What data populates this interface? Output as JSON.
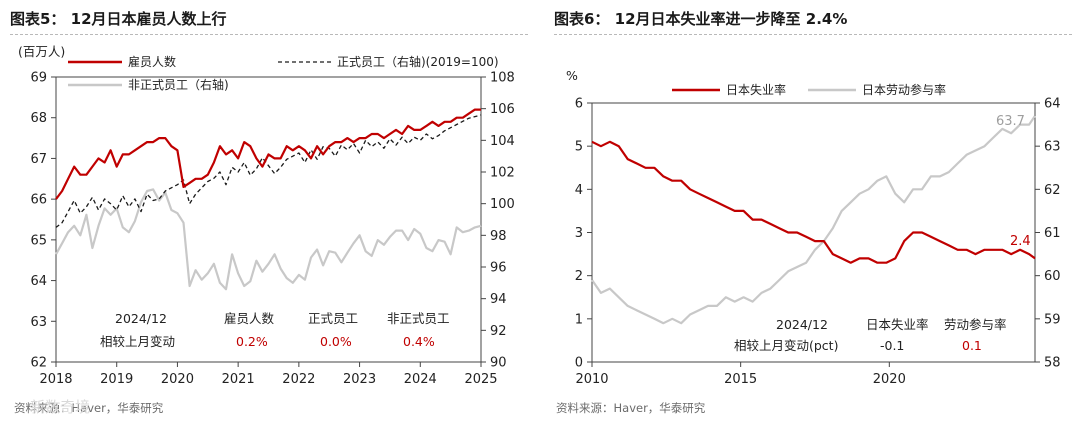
{
  "left_panel": {
    "title": "图表5： 12月日本雇员人数上行",
    "source": "资料来源：Haver，华泰研究",
    "watermark": "新数奇境"
  },
  "right_panel": {
    "title": "图表6： 12月日本失业率进一步降至 2.4%",
    "source": "资料来源：Haver，华泰研究"
  },
  "colors": {
    "red": "#c00000",
    "dashed": "#1a1a1a",
    "gray": "#c8c8c8"
  },
  "chart_data": [
    {
      "type": "line",
      "y_unit_label": "(百万人)",
      "xlim": [
        2018,
        2025
      ],
      "x_ticks": [
        "2018",
        "2019",
        "2020",
        "2021",
        "2022",
        "2023",
        "2024",
        "2025"
      ],
      "ylim_left": [
        62,
        69
      ],
      "y_ticks_left": [
        "62",
        "63",
        "64",
        "65",
        "66",
        "67",
        "68",
        "69"
      ],
      "ylim_right": [
        90,
        108
      ],
      "y_ticks_right": [
        "90",
        "92",
        "94",
        "96",
        "98",
        "100",
        "102",
        "104",
        "106",
        "108"
      ],
      "legend": [
        "雇员人数",
        "正式员工（右轴)(2019=100)",
        "非正式员工（右轴)"
      ],
      "series": [
        {
          "name": "雇员人数",
          "axis": "left",
          "style": "solid",
          "color": "#c00000",
          "x": [
            2018.0,
            2018.1,
            2018.2,
            2018.3,
            2018.4,
            2018.5,
            2018.6,
            2018.7,
            2018.8,
            2018.9,
            2019.0,
            2019.1,
            2019.2,
            2019.3,
            2019.4,
            2019.5,
            2019.6,
            2019.7,
            2019.8,
            2019.9,
            2020.0,
            2020.1,
            2020.2,
            2020.3,
            2020.4,
            2020.5,
            2020.6,
            2020.7,
            2020.8,
            2020.9,
            2021.0,
            2021.1,
            2021.2,
            2021.3,
            2021.4,
            2021.5,
            2021.6,
            2021.7,
            2021.8,
            2021.9,
            2022.0,
            2022.1,
            2022.2,
            2022.3,
            2022.4,
            2022.5,
            2022.6,
            2022.7,
            2022.8,
            2022.9,
            2023.0,
            2023.1,
            2023.2,
            2023.3,
            2023.4,
            2023.5,
            2023.6,
            2023.7,
            2023.8,
            2023.9,
            2024.0,
            2024.1,
            2024.2,
            2024.3,
            2024.4,
            2024.5,
            2024.6,
            2024.7,
            2024.8,
            2024.9,
            2025.0
          ],
          "y": [
            66.0,
            66.2,
            66.5,
            66.8,
            66.6,
            66.6,
            66.8,
            67.0,
            66.9,
            67.2,
            66.8,
            67.1,
            67.1,
            67.2,
            67.3,
            67.4,
            67.4,
            67.5,
            67.5,
            67.3,
            67.2,
            66.3,
            66.4,
            66.5,
            66.5,
            66.6,
            66.9,
            67.3,
            67.1,
            67.2,
            67.0,
            67.4,
            67.3,
            67.0,
            66.8,
            67.1,
            67.0,
            67.0,
            67.3,
            67.2,
            67.3,
            67.2,
            67.0,
            67.3,
            67.1,
            67.3,
            67.4,
            67.4,
            67.5,
            67.4,
            67.5,
            67.5,
            67.6,
            67.6,
            67.5,
            67.6,
            67.7,
            67.6,
            67.8,
            67.7,
            67.7,
            67.8,
            67.9,
            67.8,
            67.9,
            67.9,
            68.0,
            68.0,
            68.1,
            68.2,
            68.2
          ]
        },
        {
          "name": "正式员工（右轴)(2019=100)",
          "axis": "right",
          "style": "dashed",
          "color": "#1a1a1a",
          "x": [
            2018.0,
            2018.1,
            2018.2,
            2018.3,
            2018.4,
            2018.5,
            2018.6,
            2018.7,
            2018.8,
            2018.9,
            2019.0,
            2019.1,
            2019.2,
            2019.3,
            2019.4,
            2019.5,
            2019.6,
            2019.7,
            2019.8,
            2019.9,
            2020.0,
            2020.1,
            2020.2,
            2020.3,
            2020.4,
            2020.5,
            2020.6,
            2020.7,
            2020.8,
            2020.9,
            2021.0,
            2021.1,
            2021.2,
            2021.3,
            2021.4,
            2021.5,
            2021.6,
            2021.7,
            2021.8,
            2021.9,
            2022.0,
            2022.1,
            2022.2,
            2022.3,
            2022.4,
            2022.5,
            2022.6,
            2022.7,
            2022.8,
            2022.9,
            2023.0,
            2023.1,
            2023.2,
            2023.3,
            2023.4,
            2023.5,
            2023.6,
            2023.7,
            2023.8,
            2023.9,
            2024.0,
            2024.1,
            2024.2,
            2024.3,
            2024.4,
            2024.5,
            2024.6,
            2024.7,
            2024.8,
            2024.9,
            2025.0
          ],
          "y": [
            98.5,
            98.8,
            99.5,
            100.2,
            99.4,
            99.8,
            100.4,
            99.6,
            100.3,
            100.0,
            99.6,
            100.5,
            99.8,
            100.3,
            99.5,
            100.6,
            100.2,
            100.3,
            100.8,
            101.0,
            101.2,
            101.5,
            100.0,
            100.6,
            101.0,
            101.4,
            101.6,
            102.0,
            101.2,
            102.3,
            102.0,
            102.6,
            101.8,
            102.2,
            102.9,
            102.4,
            101.9,
            102.3,
            102.8,
            103.0,
            103.2,
            102.6,
            103.4,
            102.8,
            103.6,
            103.5,
            103.0,
            103.7,
            103.4,
            103.8,
            103.2,
            104.0,
            103.6,
            103.9,
            103.5,
            104.1,
            103.7,
            104.2,
            103.8,
            104.2,
            104.0,
            104.4,
            104.1,
            104.3,
            104.6,
            104.8,
            105.0,
            105.2,
            105.4,
            105.5,
            105.6
          ]
        },
        {
          "name": "非正式员工（右轴)",
          "axis": "right",
          "style": "solid",
          "color": "#c8c8c8",
          "x": [
            2018.0,
            2018.1,
            2018.2,
            2018.3,
            2018.4,
            2018.5,
            2018.6,
            2018.7,
            2018.8,
            2018.9,
            2019.0,
            2019.1,
            2019.2,
            2019.3,
            2019.4,
            2019.5,
            2019.6,
            2019.7,
            2019.8,
            2019.9,
            2020.0,
            2020.1,
            2020.2,
            2020.3,
            2020.4,
            2020.5,
            2020.6,
            2020.7,
            2020.8,
            2020.9,
            2021.0,
            2021.1,
            2021.2,
            2021.3,
            2021.4,
            2021.5,
            2021.6,
            2021.7,
            2021.8,
            2021.9,
            2022.0,
            2022.1,
            2022.2,
            2022.3,
            2022.4,
            2022.5,
            2022.6,
            2022.7,
            2022.8,
            2022.9,
            2023.0,
            2023.1,
            2023.2,
            2023.3,
            2023.4,
            2023.5,
            2023.6,
            2023.7,
            2023.8,
            2023.9,
            2024.0,
            2024.1,
            2024.2,
            2024.3,
            2024.4,
            2024.5,
            2024.6,
            2024.7,
            2024.8,
            2024.9,
            2025.0
          ],
          "y": [
            96.8,
            97.5,
            98.2,
            98.6,
            98.0,
            99.3,
            97.2,
            98.6,
            99.7,
            99.3,
            99.7,
            98.5,
            98.2,
            98.9,
            100.1,
            100.8,
            100.9,
            100.2,
            100.7,
            99.6,
            99.4,
            98.8,
            94.8,
            95.8,
            95.2,
            95.6,
            96.2,
            95.0,
            94.6,
            96.8,
            95.6,
            94.8,
            95.1,
            96.4,
            95.7,
            96.2,
            96.8,
            95.9,
            95.3,
            95.0,
            95.5,
            95.2,
            96.6,
            97.1,
            96.1,
            97.0,
            96.9,
            96.3,
            96.9,
            97.5,
            98.0,
            97.0,
            96.7,
            97.7,
            97.4,
            97.9,
            98.3,
            98.3,
            97.7,
            98.4,
            98.1,
            97.2,
            97.0,
            97.7,
            97.6,
            96.8,
            98.5,
            98.2,
            98.3,
            98.5,
            98.6
          ]
        }
      ],
      "annotation_table": {
        "header": [
          "2024/12",
          "雇员人数",
          "正式员工",
          "非正式员工"
        ],
        "row": [
          "相较上月变动",
          "0.2%",
          "0.0%",
          "0.4%"
        ]
      }
    },
    {
      "type": "line",
      "y_unit_label": "%",
      "xlim": [
        2010,
        2024.9
      ],
      "x_ticks": [
        "2010",
        "2015",
        "2020"
      ],
      "ylim_left": [
        0,
        6
      ],
      "y_ticks_left": [
        "0",
        "1",
        "2",
        "3",
        "4",
        "5",
        "6"
      ],
      "ylim_right": [
        58,
        64
      ],
      "y_ticks_right": [
        "58",
        "59",
        "60",
        "61",
        "62",
        "63",
        "64"
      ],
      "legend": [
        "日本失业率",
        "日本劳动参与率"
      ],
      "series": [
        {
          "name": "日本失业率",
          "axis": "left",
          "style": "solid",
          "color": "#c00000",
          "x": [
            2010.0,
            2010.3,
            2010.6,
            2010.9,
            2011.2,
            2011.5,
            2011.8,
            2012.1,
            2012.4,
            2012.7,
            2013.0,
            2013.3,
            2013.6,
            2013.9,
            2014.2,
            2014.5,
            2014.8,
            2015.1,
            2015.4,
            2015.7,
            2016.0,
            2016.3,
            2016.6,
            2016.9,
            2017.2,
            2017.5,
            2017.8,
            2018.1,
            2018.4,
            2018.7,
            2019.0,
            2019.3,
            2019.6,
            2019.9,
            2020.2,
            2020.5,
            2020.8,
            2021.1,
            2021.4,
            2021.7,
            2022.0,
            2022.3,
            2022.6,
            2022.9,
            2023.2,
            2023.5,
            2023.8,
            2024.1,
            2024.4,
            2024.7,
            2024.9
          ],
          "y": [
            5.1,
            5.0,
            5.1,
            5.0,
            4.7,
            4.6,
            4.5,
            4.5,
            4.3,
            4.2,
            4.2,
            4.0,
            3.9,
            3.8,
            3.7,
            3.6,
            3.5,
            3.5,
            3.3,
            3.3,
            3.2,
            3.1,
            3.0,
            3.0,
            2.9,
            2.8,
            2.8,
            2.5,
            2.4,
            2.3,
            2.4,
            2.4,
            2.3,
            2.3,
            2.4,
            2.8,
            3.0,
            3.0,
            2.9,
            2.8,
            2.7,
            2.6,
            2.6,
            2.5,
            2.6,
            2.6,
            2.6,
            2.5,
            2.6,
            2.5,
            2.4
          ]
        },
        {
          "name": "日本劳动参与率",
          "axis": "right",
          "style": "solid",
          "color": "#c8c8c8",
          "x": [
            2010.0,
            2010.3,
            2010.6,
            2010.9,
            2011.2,
            2011.5,
            2011.8,
            2012.1,
            2012.4,
            2012.7,
            2013.0,
            2013.3,
            2013.6,
            2013.9,
            2014.2,
            2014.5,
            2014.8,
            2015.1,
            2015.4,
            2015.7,
            2016.0,
            2016.3,
            2016.6,
            2016.9,
            2017.2,
            2017.5,
            2017.8,
            2018.1,
            2018.4,
            2018.7,
            2019.0,
            2019.3,
            2019.6,
            2019.9,
            2020.2,
            2020.5,
            2020.8,
            2021.1,
            2021.4,
            2021.7,
            2022.0,
            2022.3,
            2022.6,
            2022.9,
            2023.2,
            2023.5,
            2023.8,
            2024.1,
            2024.4,
            2024.7,
            2024.9
          ],
          "y": [
            59.9,
            59.6,
            59.7,
            59.5,
            59.3,
            59.2,
            59.1,
            59.0,
            58.9,
            59.0,
            58.9,
            59.1,
            59.2,
            59.3,
            59.3,
            59.5,
            59.4,
            59.5,
            59.4,
            59.6,
            59.7,
            59.9,
            60.1,
            60.2,
            60.3,
            60.6,
            60.8,
            61.1,
            61.5,
            61.7,
            61.9,
            62.0,
            62.2,
            62.3,
            61.9,
            61.7,
            62.0,
            62.0,
            62.3,
            62.3,
            62.4,
            62.6,
            62.8,
            62.9,
            63.0,
            63.2,
            63.4,
            63.3,
            63.5,
            63.5,
            63.7
          ]
        }
      ],
      "value_labels": [
        "63.7",
        "2.4"
      ],
      "annotation_table": {
        "header": [
          "2024/12",
          "日本失业率",
          "劳动参与率"
        ],
        "row": [
          "相较上月变动(pct)",
          "-0.1",
          "0.1"
        ]
      }
    }
  ]
}
